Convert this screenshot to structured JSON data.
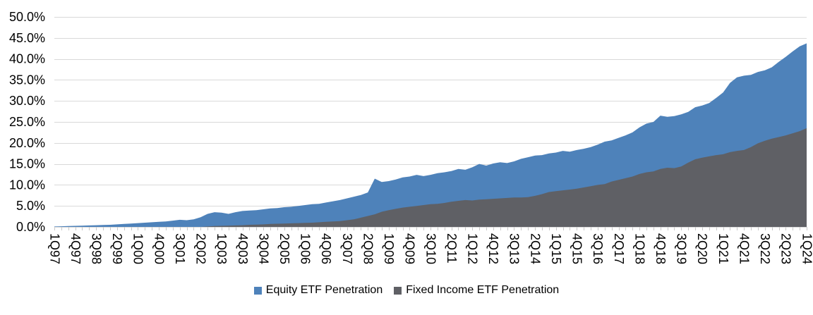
{
  "chart_data": {
    "type": "area",
    "categories": [
      "1Q97",
      "2Q97",
      "3Q97",
      "4Q97",
      "1Q98",
      "2Q98",
      "3Q98",
      "4Q98",
      "1Q99",
      "2Q99",
      "3Q99",
      "4Q99",
      "1Q00",
      "2Q00",
      "3Q00",
      "4Q00",
      "1Q01",
      "2Q01",
      "3Q01",
      "4Q01",
      "1Q02",
      "2Q02",
      "3Q02",
      "4Q02",
      "1Q03",
      "2Q03",
      "3Q03",
      "4Q03",
      "1Q04",
      "2Q04",
      "3Q04",
      "4Q04",
      "1Q05",
      "2Q05",
      "3Q05",
      "4Q05",
      "1Q06",
      "2Q06",
      "3Q06",
      "4Q06",
      "1Q07",
      "2Q07",
      "3Q07",
      "4Q07",
      "1Q08",
      "2Q08",
      "3Q08",
      "4Q08",
      "1Q09",
      "2Q09",
      "3Q09",
      "4Q09",
      "1Q10",
      "2Q10",
      "3Q10",
      "4Q10",
      "1Q11",
      "2Q11",
      "3Q11",
      "4Q11",
      "1Q12",
      "2Q12",
      "3Q12",
      "4Q12",
      "1Q13",
      "2Q13",
      "3Q13",
      "4Q13",
      "1Q14",
      "2Q14",
      "3Q14",
      "4Q14",
      "1Q15",
      "2Q15",
      "3Q15",
      "4Q15",
      "1Q16",
      "2Q16",
      "3Q16",
      "4Q16",
      "1Q17",
      "2Q17",
      "3Q17",
      "4Q17",
      "1Q18",
      "2Q18",
      "3Q18",
      "4Q18",
      "1Q19",
      "2Q19",
      "3Q19",
      "4Q19",
      "1Q20",
      "2Q20",
      "3Q20",
      "4Q20",
      "1Q21",
      "2Q21",
      "3Q21",
      "4Q21",
      "1Q22",
      "2Q22",
      "3Q22",
      "4Q22",
      "1Q23",
      "2Q23",
      "3Q23",
      "4Q23",
      "1Q24"
    ],
    "x_label_every": 3,
    "series": [
      {
        "name": "Equity ETF Penetration",
        "color": "#4E82BA",
        "values": [
          0.1,
          0.15,
          0.2,
          0.25,
          0.3,
          0.35,
          0.4,
          0.45,
          0.5,
          0.6,
          0.7,
          0.8,
          0.9,
          1.0,
          1.1,
          1.2,
          1.3,
          1.5,
          1.7,
          1.6,
          1.8,
          2.3,
          3.1,
          3.5,
          3.4,
          3.1,
          3.5,
          3.8,
          3.9,
          4.0,
          4.2,
          4.4,
          4.5,
          4.7,
          4.8,
          5.0,
          5.2,
          5.4,
          5.5,
          5.8,
          6.1,
          6.4,
          6.8,
          7.2,
          7.6,
          8.2,
          11.5,
          10.7,
          10.9,
          11.3,
          11.8,
          12.0,
          12.4,
          12.1,
          12.4,
          12.8,
          13.0,
          13.3,
          13.8,
          13.6,
          14.2,
          15.0,
          14.6,
          15.1,
          15.4,
          15.2,
          15.6,
          16.2,
          16.6,
          17.0,
          17.1,
          17.5,
          17.7,
          18.1,
          17.9,
          18.3,
          18.6,
          19.0,
          19.6,
          20.3,
          20.6,
          21.2,
          21.8,
          22.5,
          23.7,
          24.6,
          25.0,
          26.5,
          26.2,
          26.4,
          26.8,
          27.4,
          28.5,
          28.9,
          29.5,
          30.7,
          32.0,
          34.3,
          35.6,
          36.0,
          36.2,
          36.9,
          37.3,
          38.0,
          39.3,
          40.5,
          41.8,
          43.0,
          43.7
        ]
      },
      {
        "name": "Fixed Income ETF Penetration",
        "color": "#5F6065",
        "values": [
          0,
          0,
          0,
          0,
          0,
          0,
          0,
          0,
          0,
          0,
          0,
          0,
          0,
          0,
          0,
          0,
          0,
          0,
          0,
          0,
          0,
          0,
          0.1,
          0.2,
          0.25,
          0.3,
          0.35,
          0.4,
          0.5,
          0.55,
          0.6,
          0.7,
          0.75,
          0.8,
          0.85,
          0.9,
          0.95,
          1.0,
          1.1,
          1.2,
          1.3,
          1.4,
          1.6,
          1.8,
          2.2,
          2.6,
          3.0,
          3.6,
          4.0,
          4.3,
          4.6,
          4.8,
          5.0,
          5.2,
          5.4,
          5.5,
          5.7,
          6.0,
          6.2,
          6.4,
          6.3,
          6.5,
          6.6,
          6.7,
          6.8,
          6.9,
          7.0,
          7.0,
          7.1,
          7.4,
          7.8,
          8.3,
          8.5,
          8.7,
          8.9,
          9.1,
          9.4,
          9.7,
          10.0,
          10.2,
          10.8,
          11.2,
          11.6,
          12.0,
          12.6,
          13.0,
          13.2,
          13.8,
          14.1,
          14.0,
          14.4,
          15.3,
          16.1,
          16.5,
          16.8,
          17.1,
          17.3,
          17.8,
          18.1,
          18.3,
          19.0,
          19.9,
          20.5,
          21.0,
          21.4,
          21.8,
          22.3,
          22.8,
          23.5
        ]
      }
    ],
    "ylim": [
      0,
      50
    ],
    "ytick_step": 5,
    "ytick_labels": [
      "0.0%",
      "5.0%",
      "10.0%",
      "15.0%",
      "20.0%",
      "25.0%",
      "30.0%",
      "35.0%",
      "40.0%",
      "45.0%",
      "50.0%"
    ],
    "grid": true,
    "gridline_color": "#D9D9D9",
    "tick_color": "#C9C9C9",
    "axis_text_color": "#000000",
    "legend_position": "bottom"
  },
  "legend": {
    "items": [
      {
        "label": "Equity ETF Penetration",
        "color": "#4E82BA"
      },
      {
        "label": "Fixed Income ETF Penetration",
        "color": "#5F6065"
      }
    ]
  }
}
